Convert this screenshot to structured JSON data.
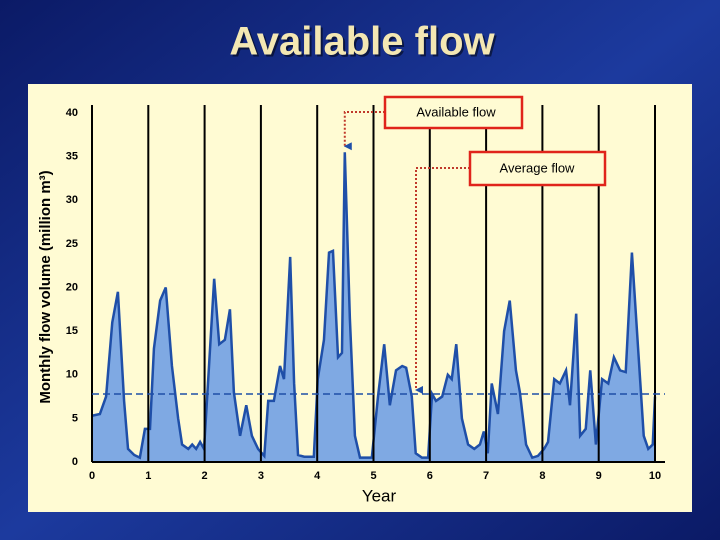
{
  "chart_data": {
    "type": "area",
    "title": "Available flow",
    "x_label": "Year",
    "y_label": "Monthly flow volume (million m³)",
    "x": [
      0,
      0.14,
      0.25,
      0.36,
      0.46,
      0.57,
      0.64,
      0.75,
      0.85,
      0.94,
      1.03,
      1.1,
      1.21,
      1.31,
      1.42,
      1.53,
      1.6,
      1.71,
      1.78,
      1.85,
      1.92,
      1.99,
      2.06,
      2.17,
      2.26,
      2.36,
      2.45,
      2.52,
      2.63,
      2.74,
      2.84,
      2.95,
      3.06,
      3.13,
      3.23,
      3.34,
      3.41,
      3.52,
      3.59,
      3.66,
      3.77,
      3.87,
      3.94,
      4.01,
      4.12,
      4.21,
      4.28,
      4.37,
      4.44,
      4.49,
      4.58,
      4.67,
      4.76,
      4.87,
      4.97,
      5.08,
      5.19,
      5.29,
      5.4,
      5.51,
      5.58,
      5.68,
      5.75,
      5.86,
      5.97,
      6.04,
      6.11,
      6.22,
      6.32,
      6.39,
      6.47,
      6.57,
      6.68,
      6.79,
      6.89,
      6.96,
      7.03,
      7.1,
      7.21,
      7.32,
      7.42,
      7.53,
      7.6,
      7.71,
      7.82,
      7.92,
      8.03,
      8.1,
      8.21,
      8.31,
      8.42,
      8.49,
      8.6,
      8.67,
      8.77,
      8.85,
      8.95,
      9.06,
      9.17,
      9.27,
      9.38,
      9.48,
      9.59,
      9.7,
      9.8,
      9.88,
      9.96,
      10
    ],
    "series": [
      {
        "name": "Available flow",
        "color": "#7fa9e3",
        "line_color": "#1f4fa8",
        "values": [
          5.3,
          5.5,
          7.5,
          16,
          19.5,
          7,
          1.5,
          0.8,
          0.5,
          3.8,
          3.8,
          13,
          18.5,
          20,
          11,
          5,
          2,
          1.5,
          2,
          1.5,
          2.3,
          1.5,
          9,
          21,
          13.5,
          14,
          17.5,
          8,
          3,
          6.5,
          3,
          1.5,
          0.7,
          7,
          7,
          11,
          9.5,
          23.5,
          9,
          0.8,
          0.6,
          0.6,
          0.6,
          9.5,
          14,
          24,
          24.2,
          12,
          12.5,
          35.5,
          16.5,
          3,
          0.5,
          0.5,
          0.5,
          7.5,
          13.5,
          6.5,
          10.5,
          11,
          10.8,
          7.5,
          1,
          0.5,
          0.5,
          7.8,
          7,
          7.5,
          10,
          9.5,
          13.5,
          5,
          2,
          1.5,
          2,
          3.5,
          1,
          9,
          5.5,
          15,
          18.5,
          10.5,
          8,
          2,
          0.5,
          0.7,
          1.5,
          2.3,
          9.5,
          9,
          10.5,
          6.5,
          17,
          3,
          3.8,
          10.5,
          2,
          9.5,
          9,
          12,
          10.5,
          10.3,
          24,
          13,
          3,
          1.5,
          2,
          7.5
        ]
      }
    ],
    "average": {
      "name": "Average flow",
      "value": 7.8,
      "color": "#1f4fa8"
    },
    "xlim": [
      0,
      10
    ],
    "xticks": [
      0,
      1,
      2,
      3,
      4,
      5,
      6,
      7,
      8,
      9,
      10
    ],
    "ylim": [
      0,
      40
    ],
    "yticks": [
      0,
      5,
      10,
      15,
      20,
      25,
      30,
      35,
      40
    ],
    "grid": true
  }
}
